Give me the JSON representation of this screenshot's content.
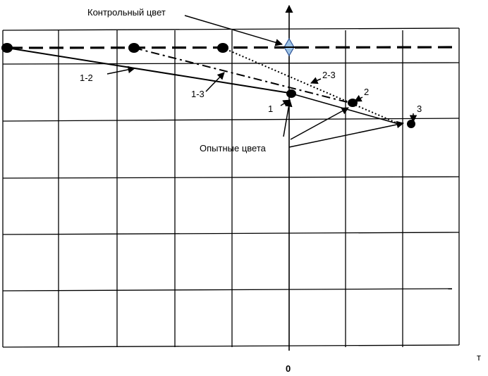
{
  "labels": {
    "control_color": "Контрольный цвет",
    "experimental_colors": "Опытные цвета",
    "line_1_2": "1-2",
    "line_1_3": "1-3",
    "line_2_3": "2-3",
    "point_1": "1",
    "point_2": "2",
    "point_3": "3",
    "origin": "0",
    "axis_t": "т"
  },
  "colors": {
    "ink": "#000000",
    "control_marker_fill": "#9dc3e6",
    "control_marker_stroke": "#2f5597"
  }
}
